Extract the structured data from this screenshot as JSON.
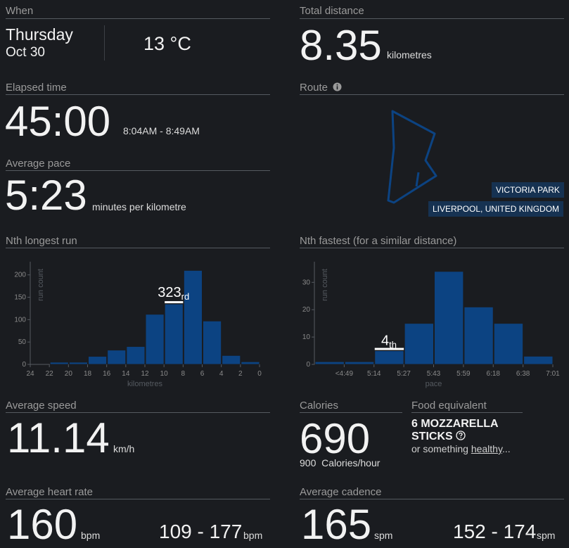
{
  "when": {
    "label": "When",
    "day": "Thursday",
    "date": "Oct 30",
    "temperature": "13 °C"
  },
  "distance": {
    "label": "Total distance",
    "value": "8.35",
    "unit": "kilometres"
  },
  "elapsed": {
    "label": "Elapsed time",
    "value": "45:00",
    "range": "8:04AM - 8:49AM"
  },
  "pace": {
    "label": "Average pace",
    "value": "5:23",
    "unit": "minutes per kilometre"
  },
  "route": {
    "label": "Route",
    "place": "VICTORIA PARK",
    "city": "LIVERPOOL, UNITED KINGDOM",
    "info_icon": "info-icon"
  },
  "longest": {
    "label": "Nth longest run",
    "rank": "323",
    "suffix": "rd"
  },
  "fastest": {
    "label": "Nth fastest (for a similar distance)",
    "rank": "4",
    "suffix": "th"
  },
  "speed": {
    "label": "Average speed",
    "value": "11.14",
    "unit": "km/h"
  },
  "calories": {
    "label": "Calories",
    "value": "690",
    "rate_value": "900",
    "rate_unit": "Calories/hour"
  },
  "food": {
    "label": "Food equivalent",
    "line1": "6 MOZZARELLA",
    "line2": "STICKS",
    "prefix": "or something ",
    "link": "healthy",
    "suffix": "..."
  },
  "heart": {
    "label": "Average heart rate",
    "value": "160",
    "unit": "bpm",
    "range": "109 - 177",
    "range_unit": "bpm"
  },
  "cadence": {
    "label": "Average cadence",
    "value": "165",
    "unit": "spm",
    "range": "152 - 174",
    "range_unit": "spm"
  },
  "chart_data": [
    {
      "type": "bar",
      "title": "Nth longest run",
      "xlabel": "kilometres",
      "ylabel": "run count",
      "x_ticks": [
        "24",
        "22",
        "20",
        "18",
        "16",
        "14",
        "12",
        "10",
        "8",
        "6",
        "4",
        "2",
        "0"
      ],
      "bin_edges": [
        24,
        22,
        20,
        18,
        16,
        14,
        12,
        10,
        8,
        6,
        4,
        2,
        0
      ],
      "values": [
        0,
        5,
        5,
        18,
        32,
        40,
        112,
        135,
        210,
        97,
        20,
        6
      ],
      "ylim": [
        0,
        220
      ],
      "y_ticks": [
        "0",
        "50",
        "100",
        "150",
        "200"
      ],
      "highlight_bin": 7,
      "annotation": "323rd"
    },
    {
      "type": "bar",
      "title": "Nth fastest (for a similar distance)",
      "xlabel": "pace",
      "ylabel": "run count",
      "x_ticks": [
        "<4:49",
        "5:14",
        "5:27",
        "5:43",
        "5:59",
        "6:18",
        "6:38",
        "7:01"
      ],
      "values": [
        1,
        1,
        5,
        15,
        34,
        21,
        15,
        3
      ],
      "ylim": [
        0,
        36
      ],
      "y_ticks": [
        "0",
        "10",
        "20",
        "30"
      ],
      "highlight_bin": 2,
      "annotation": "4th"
    }
  ]
}
